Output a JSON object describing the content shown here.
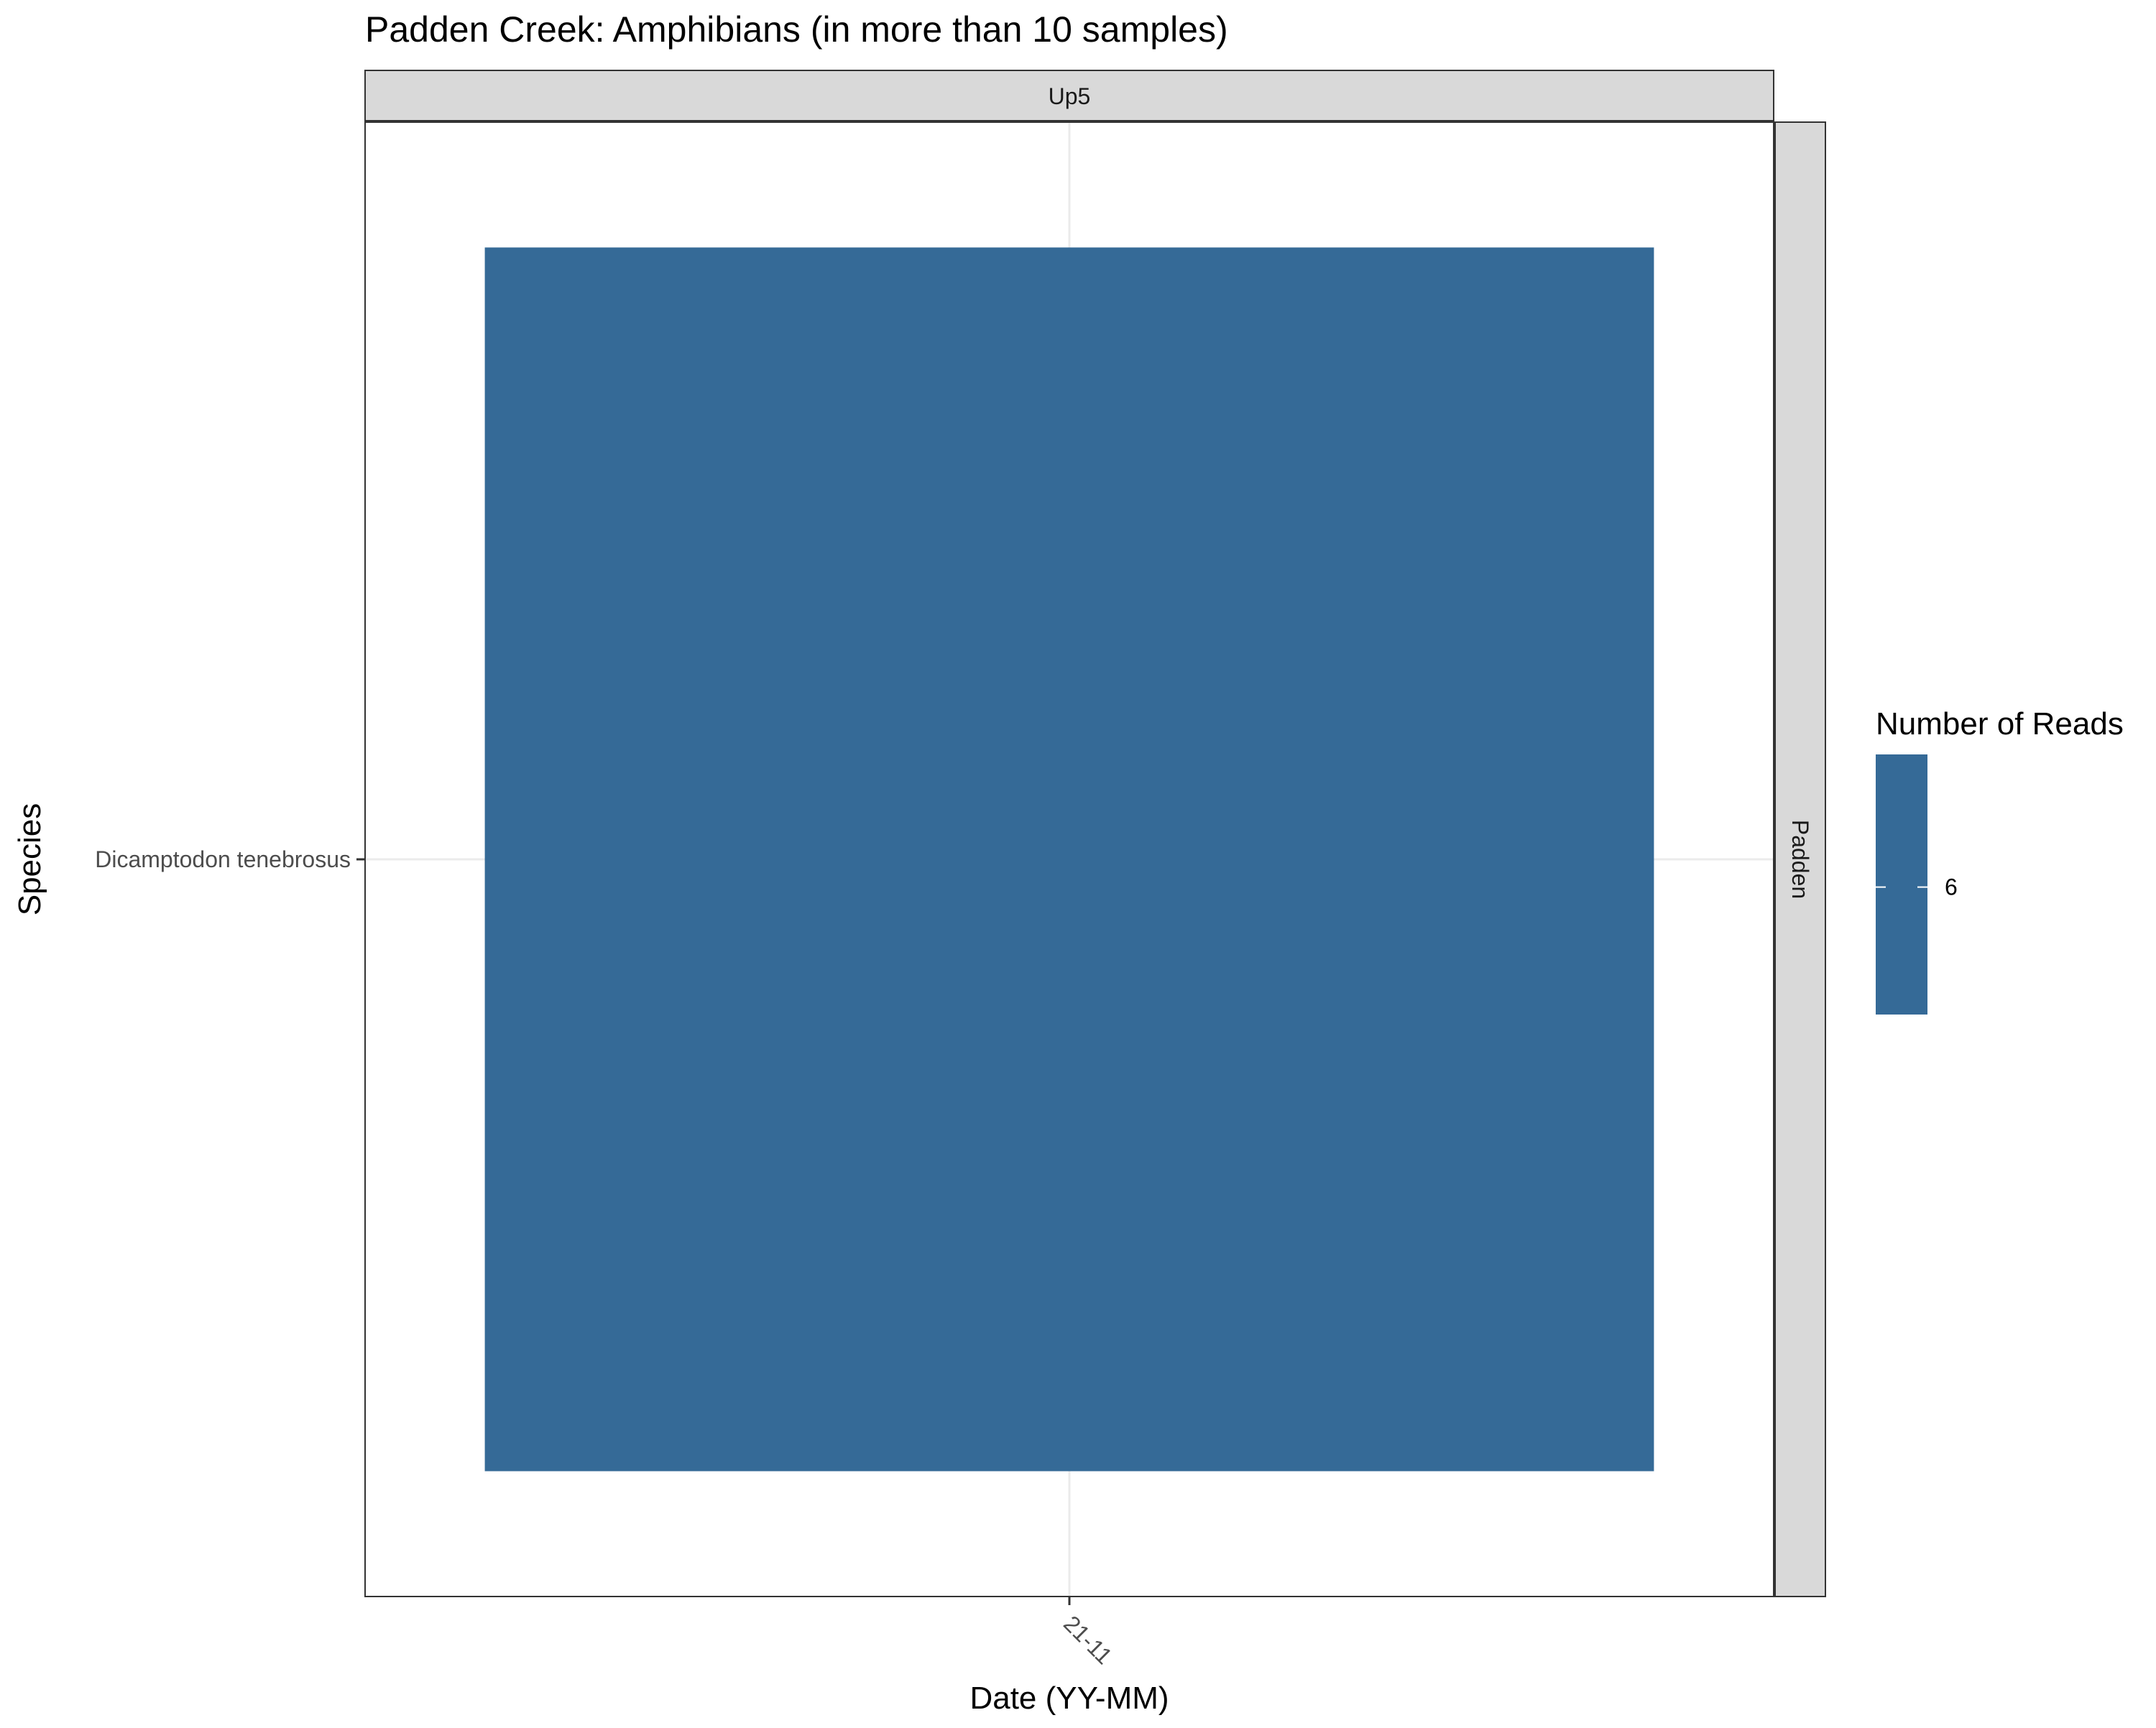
{
  "chart_data": {
    "type": "heatmap",
    "title": "Padden Creek: Amphibians (in more than 10 samples)",
    "xlabel": "Date (YY-MM)",
    "ylabel": "Species",
    "facet_top": "Up5",
    "facet_right": "Padden",
    "x_categories": [
      "21-11"
    ],
    "y_categories": [
      "Dicamptodon tenebrosus"
    ],
    "cells": [
      {
        "x": "21-11",
        "y": "Dicamptodon tenebrosus",
        "value": 6
      }
    ],
    "legend": {
      "title": "Number of Reads",
      "ticks": [
        6
      ],
      "placement": "right"
    },
    "colors": {
      "fill": "#356a97",
      "strip": "#d9d9d9",
      "grid": "#ebebeb",
      "border": "#333333"
    },
    "grid": true
  }
}
